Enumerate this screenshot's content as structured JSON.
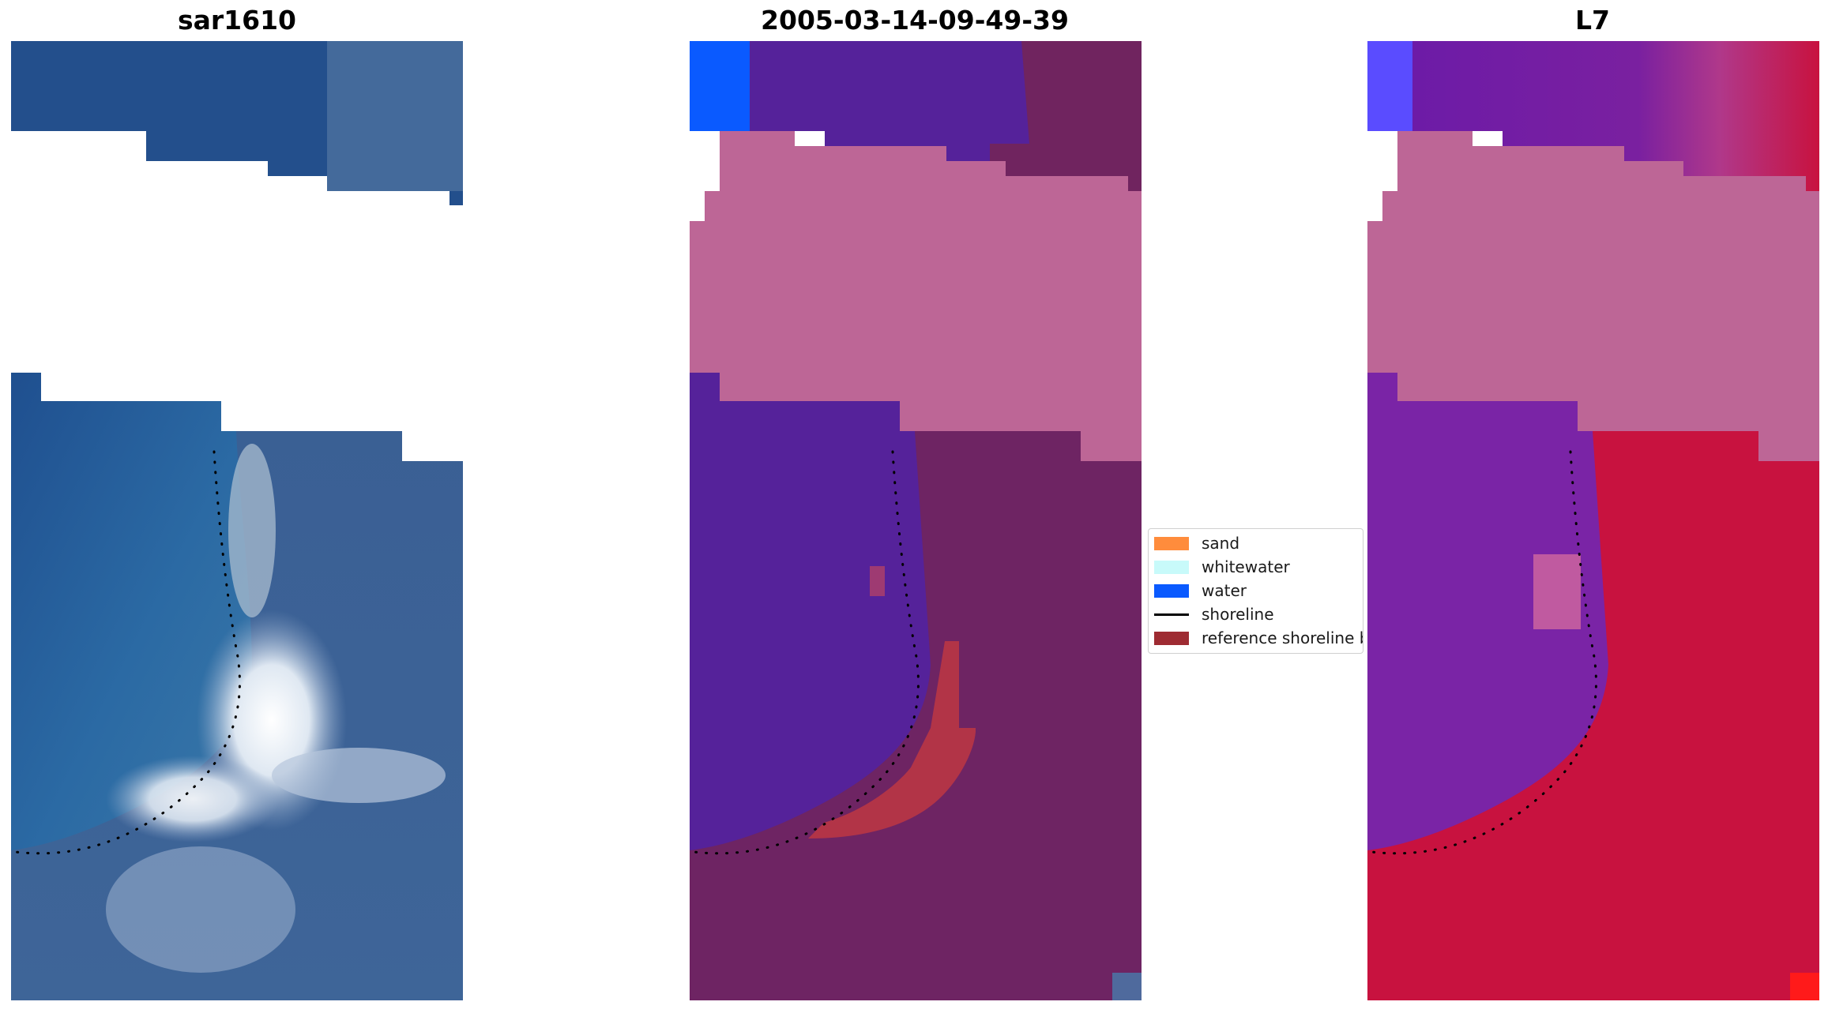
{
  "panels": [
    {
      "id": "rgb",
      "title": "sar1610",
      "kind": "rgb"
    },
    {
      "id": "classified",
      "title": "2005-03-14-09-49-39",
      "kind": "classified"
    },
    {
      "id": "index",
      "title": "L7",
      "kind": "index"
    }
  ],
  "legend": {
    "items": [
      {
        "label": "sand",
        "type": "patch",
        "color": "#ff8c3c"
      },
      {
        "label": "whitewater",
        "type": "patch",
        "color": "#c8fafa"
      },
      {
        "label": "water",
        "type": "patch",
        "color": "#0a5aff"
      },
      {
        "label": "shoreline",
        "type": "line",
        "color": "#000000"
      },
      {
        "label": "reference shoreline buffer",
        "type": "patch",
        "color": "#9e2b32"
      }
    ]
  },
  "colors": {
    "no_data": "#ffffff",
    "rgb_ocean": "#245a96",
    "rgb_whitewater": "#e6eef6",
    "rgb_land": "#3c5f93",
    "class_water_overlay": "#55229a",
    "class_nodata_overlay": "#bd6696",
    "class_land_overlay": "#6e2463",
    "class_buffer_overlay": "#b23447",
    "index_water": "#7a24a6",
    "index_nodata": "#bd6696",
    "index_land": "#c8123f",
    "shoreline_dots": "#000000"
  }
}
